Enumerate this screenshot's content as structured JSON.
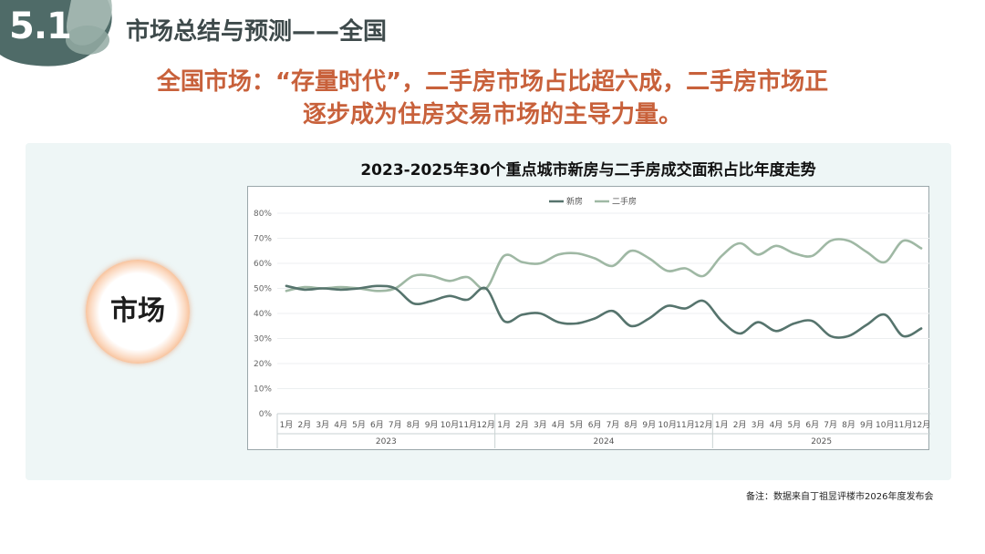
{
  "section": {
    "number": "5.1",
    "title": "市场总结与预测——全国"
  },
  "headline": {
    "line1": "全国市场：“存量时代”，二手房市场占比超六成，二手房市场正",
    "line2": "逐步成为住房交易市场的主导力量。"
  },
  "badge": {
    "label": "市场"
  },
  "colors": {
    "new_house": "#56746d",
    "second_hand": "#9fb8a4",
    "headline": "#c8613b",
    "corner": "#4f6b68"
  },
  "chart_data": {
    "type": "line",
    "title": "2023-2025年30个重点城市新房与二手房成交面积占比年度走势",
    "y_ticks": [
      "0%",
      "10%",
      "20%",
      "30%",
      "40%",
      "50%",
      "60%",
      "70%",
      "80%"
    ],
    "ylim": [
      0,
      80
    ],
    "months": [
      "1月",
      "2月",
      "3月",
      "4月",
      "5月",
      "6月",
      "7月",
      "8月",
      "9月",
      "10月",
      "11月",
      "12月"
    ],
    "years": [
      "2023",
      "2024",
      "2025"
    ],
    "legend_position": "top",
    "grid": true,
    "series": [
      {
        "name": "新房",
        "color": "#56746d",
        "values": [
          51,
          49.5,
          50,
          49.5,
          50,
          51,
          50,
          44,
          45,
          47,
          45.5,
          50,
          37,
          39.5,
          40,
          36.5,
          36,
          38,
          41,
          35,
          38,
          43,
          42,
          45,
          37,
          32,
          36.5,
          33,
          36,
          37,
          31,
          31,
          35.5,
          39.5,
          31,
          34
        ]
      },
      {
        "name": "二手房",
        "color": "#9fb8a4",
        "values": [
          49,
          50.5,
          50,
          50.5,
          50,
          49,
          50,
          55,
          55,
          53,
          54.5,
          50,
          63,
          60.5,
          60,
          63.5,
          64,
          62,
          59,
          65,
          62,
          57,
          58,
          55,
          63,
          68,
          63.5,
          67,
          64,
          63,
          69,
          69,
          64.5,
          60.5,
          69,
          66
        ]
      }
    ]
  },
  "note": "备注：数据来自丁祖昱评楼市2026年度发布会"
}
